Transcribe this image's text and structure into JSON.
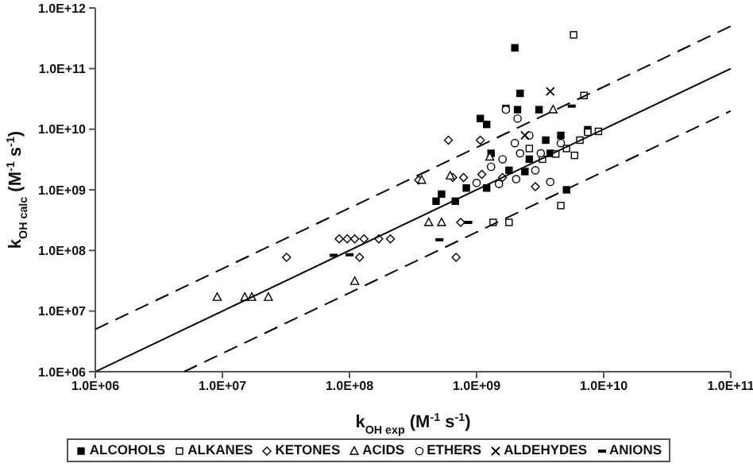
{
  "chart_data": {
    "type": "scatter",
    "xlabel": "k$_{OH exp}$ (M$^{-1}$ s$^{-1}$)",
    "ylabel": "k$_{OH calc}$ (M$^{-1}$ s$^{-1}$)",
    "log": "xy",
    "grid": false,
    "legend": "bottom",
    "xlim": [
      1000000.0,
      100000000000.0
    ],
    "ylim": [
      1000000.0,
      1000000000000.0
    ],
    "xticks": [
      {
        "value": 1000000.0,
        "label": "1.0E+06"
      },
      {
        "value": 10000000.0,
        "label": "1.0E+07"
      },
      {
        "value": 100000000.0,
        "label": "1.0E+08"
      },
      {
        "value": 1000000000.0,
        "label": "1.0E+09"
      },
      {
        "value": 10000000000.0,
        "label": "1.0E+10"
      },
      {
        "value": 100000000000.0,
        "label": "1.0E+11"
      }
    ],
    "yticks": [
      {
        "value": 1000000.0,
        "label": "1.0E+06"
      },
      {
        "value": 10000000.0,
        "label": "1.0E+07"
      },
      {
        "value": 100000000.0,
        "label": "1.0E+08"
      },
      {
        "value": 1000000000.0,
        "label": "1.0E+09"
      },
      {
        "value": 10000000000.0,
        "label": "1.0E+10"
      },
      {
        "value": 100000000000.0,
        "label": "1.0E+11"
      },
      {
        "value": 1000000000000.0,
        "label": "1.0E+12"
      }
    ],
    "series": [
      {
        "name": "ALCOHOLS",
        "color": "#000000",
        "marker": "square",
        "x": [
          2000000000.0,
          2200000000.0,
          1700000000.0,
          2100000000.0,
          3100000000.0,
          1070000000.0,
          1200000000.0,
          5100000000.0,
          480000000.0,
          530000000.0,
          680000000.0,
          830000000.0,
          1200000000.0,
          2600000000.0,
          3500000000.0,
          4600000000.0,
          7500000000.0,
          1800000000.0,
          2400000000.0,
          3800000000.0,
          1300000000.0
        ],
        "values": [
          220000000000.0,
          39000000000.0,
          22000000000.0,
          21000000000.0,
          21000000000.0,
          15000000000.0,
          12000000000.0,
          1000000000.0,
          650000000.0,
          850000000.0,
          650000000.0,
          1070000000.0,
          1070000000.0,
          3200000000.0,
          6600000000.0,
          7900000000.0,
          9800000000.0,
          2100000000.0,
          2000000000.0,
          4000000000.0,
          4000000000.0
        ]
      },
      {
        "name": "ALKANES",
        "color": "#000000",
        "marker": "square",
        "x": [
          5800000000.0,
          7000000000.0,
          4600000000.0,
          1800000000.0,
          1350000000.0,
          5900000000.0,
          5100000000.0,
          6500000000.0,
          7500000000.0,
          9100000000.0,
          4200000000.0,
          2600000000.0,
          3300000000.0
        ],
        "values": [
          360000000000.0,
          36000000000.0,
          550000000.0,
          290000000.0,
          290000000.0,
          3700000000.0,
          4800000000.0,
          6600000000.0,
          8900000000.0,
          9200000000.0,
          3900000000.0,
          4800000000.0,
          3200000000.0
        ]
      },
      {
        "name": "KETONES",
        "color": "#000000",
        "marker": "diamond",
        "x": [
          600000000.0,
          1070000000.0,
          32000000.0,
          83000000.0,
          96000000.0,
          110000000.0,
          130000000.0,
          170000000.0,
          210000000.0,
          120000000.0,
          690000000.0,
          750000000.0,
          2900000000.0,
          1600000000.0,
          650000000.0,
          790000000.0,
          350000000.0,
          1100000000.0
        ],
        "values": [
          6600000000.0,
          6600000000.0,
          77000000.0,
          155000000.0,
          155000000.0,
          155000000.0,
          155000000.0,
          155000000.0,
          155000000.0,
          77000000.0,
          77000000.0,
          290000000.0,
          1130000000.0,
          1600000000.0,
          1600000000.0,
          1600000000.0,
          1450000000.0,
          1800000000.0
        ]
      },
      {
        "name": "ACIDS",
        "color": "#000000",
        "marker": "triangle",
        "x": [
          9100000.0,
          15000000.0,
          17000000.0,
          23000000.0,
          110000000.0,
          420000000.0,
          530000000.0,
          370000000.0,
          620000000.0,
          1270000000.0,
          4000000000.0
        ],
        "values": [
          17000000.0,
          17000000.0,
          17000000.0,
          17000000.0,
          31000000.0,
          290000000.0,
          290000000.0,
          1450000000.0,
          1700000000.0,
          3500000000.0,
          21000000000.0
        ]
      },
      {
        "name": "ETHERS",
        "color": "#000000",
        "marker": "circle",
        "x": [
          1700000000.0,
          2100000000.0,
          3800000000.0,
          2050000000.0,
          1500000000.0,
          2000000000.0,
          2600000000.0,
          2900000000.0,
          1600000000.0,
          1000000000.0,
          4600000000.0,
          3200000000.0,
          2200000000.0,
          1300000000.0
        ],
        "values": [
          21000000000.0,
          15000000000.0,
          1350000000.0,
          1500000000.0,
          1250000000.0,
          5900000000.0,
          7900000000.0,
          2100000000.0,
          3200000000.0,
          1300000000.0,
          5900000000.0,
          4000000000.0,
          4000000000.0,
          2400000000.0
        ]
      },
      {
        "name": "ALDEHYDES",
        "color": "#000000",
        "marker": "cross",
        "x": [
          3800000000.0,
          2400000000.0
        ],
        "values": [
          42000000000.0,
          7900000000.0
        ]
      },
      {
        "name": "ANIONS",
        "color": "#000000",
        "x": [
          5600000000.0,
          510000000.0,
          100000000.0,
          75000000.0,
          860000000.0
        ],
        "values": [
          24000000000.0,
          150000000.0,
          85000000.0,
          83000000.0,
          290000000.0
        ]
      },
      {
        "type": "line",
        "color": "#000000",
        "line_style": "solid",
        "marker": "none",
        "x": [
          1000000.0,
          100000000000.0
        ],
        "values": [
          1000000.0,
          100000000000.0
        ]
      },
      {
        "type": "line",
        "color": "#000000",
        "line_style": "dashed",
        "marker": "none",
        "x": [
          1000000.0,
          100000000000.0
        ],
        "values": [
          5000000.0,
          500000000000.0
        ]
      },
      {
        "type": "line",
        "color": "#000000",
        "line_style": "dashed",
        "marker": "none",
        "x": [
          5000000.0,
          100000000000.0
        ],
        "values": [
          1000000.0,
          20000000000.0
        ]
      }
    ]
  }
}
